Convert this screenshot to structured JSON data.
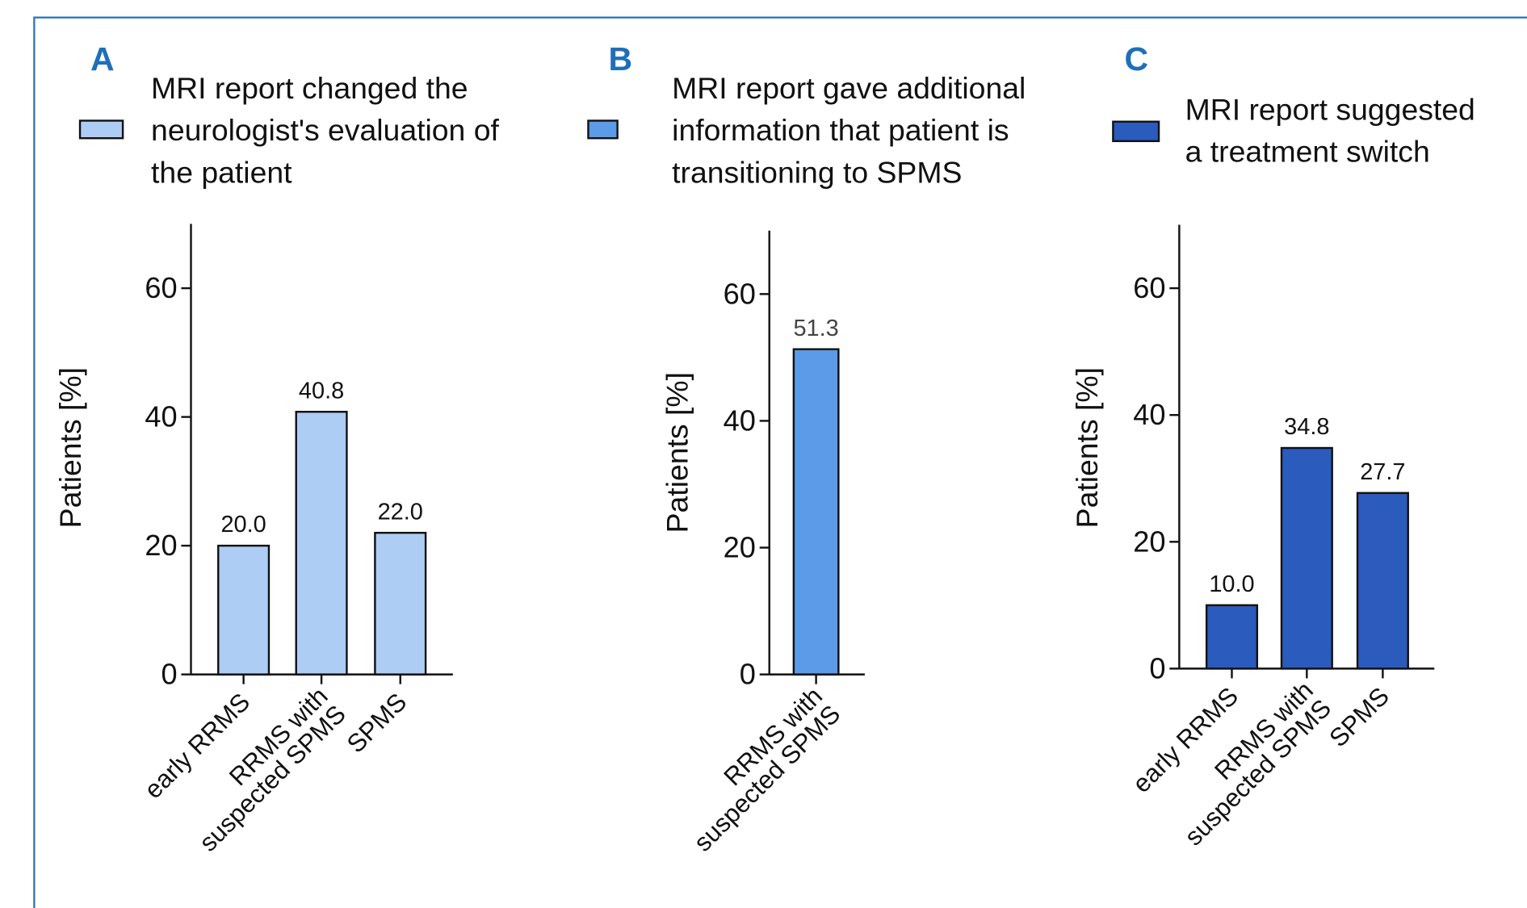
{
  "chart_data": [
    {
      "type": "bar",
      "panel": "A",
      "ylabel": "Patients [%]",
      "categories": [
        "early RRMS",
        "RRMS with\nsuspected SPMS",
        "SPMS"
      ],
      "series": [
        {
          "name": "MRI report changed the\nneurologist's evaluation of\nthe patient",
          "color": "#aecdf5",
          "values": [
            20,
            40.8,
            22
          ],
          "value_labels": [
            "20.0",
            "40.8",
            "22.0"
          ]
        }
      ],
      "ylim": [
        0,
        70
      ],
      "yticks": [
        0,
        20,
        40,
        60
      ]
    },
    {
      "type": "bar",
      "panel": "B",
      "ylabel": "Patients [%]",
      "categories": [
        "RRMS with\nsuspected SPMS"
      ],
      "series": [
        {
          "name": "MRI report gave additional\ninformation that patient is\ntransitioning to SPMS",
          "color": "#5b9be8",
          "values": [
            51.3
          ],
          "value_labels": [
            "51.3"
          ]
        }
      ],
      "ylim": [
        0,
        70
      ],
      "yticks": [
        0,
        20,
        40,
        60
      ]
    },
    {
      "type": "bar",
      "panel": "C",
      "ylabel": "Patients [%]",
      "categories": [
        "early RRMS",
        "RRMS with\nsuspected SPMS",
        "SPMS"
      ],
      "series": [
        {
          "name": "MRI report suggested\na treatment switch",
          "color": "#2a5bbd",
          "values": [
            10,
            34.8,
            27.7
          ],
          "value_labels": [
            "10.0",
            "34.8",
            "27.7"
          ]
        }
      ],
      "ylim": [
        0,
        70
      ],
      "yticks": [
        0,
        20,
        40,
        60
      ]
    }
  ]
}
